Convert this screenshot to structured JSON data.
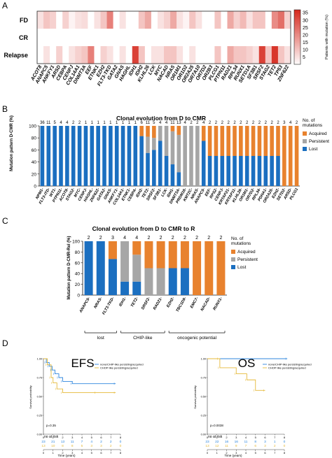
{
  "panels": {
    "a": "A",
    "b": "B",
    "c": "C",
    "d": "D"
  },
  "colors": {
    "acquired": "#E8822E",
    "persistent": "#A6A6A6",
    "lost": "#1B6FC0",
    "heat_low": "#FFFFFF",
    "heat_high": "#D62A1F",
    "km_blue": "#2E86DE",
    "km_orange": "#E5B93A"
  },
  "heatmap": {
    "rows": [
      "FD",
      "CR",
      "Relapse"
    ],
    "genes": [
      "ACOT8",
      "ANAPC5",
      "ANKFY1",
      "ARSD",
      "CEBPA",
      "CENPJ",
      "COL14A1",
      "DNMT3A",
      "EEF",
      "ETNK1",
      "EZH2",
      "FLT3-TKD",
      "GATA2",
      "GNAS",
      "HAGHL",
      "IDH1",
      "IDH2",
      "KLHL26",
      "LCK",
      "MYC",
      "NACAD",
      "NRAS",
      "OR1M1",
      "OR1D2",
      "OR2A25",
      "OR7A10",
      "OR7D2",
      "OR2B3",
      "PLCG1",
      "PTPN11",
      "RAD21",
      "RPL34",
      "RUNX1",
      "SETD1A",
      "SF3B1",
      "SRSF2",
      "STAG2",
      "TET2",
      "TP53",
      "ZNF622"
    ],
    "values": [
      [
        5,
        10,
        8,
        0,
        8,
        2,
        5,
        6,
        0,
        5,
        10,
        22,
        0,
        5,
        0,
        0,
        10,
        15,
        0,
        5,
        8,
        15,
        5,
        2,
        10,
        5,
        0,
        0,
        10,
        0,
        15,
        8,
        12,
        5,
        10,
        10,
        0,
        20,
        25,
        8
      ],
      [
        0,
        0,
        0,
        0,
        0,
        0,
        0,
        0,
        0,
        0,
        0,
        0,
        0,
        0,
        0,
        0,
        0,
        0,
        0,
        0,
        0,
        0,
        0,
        0,
        0,
        0,
        0,
        0,
        0,
        0,
        0,
        0,
        0,
        0,
        0,
        0,
        0,
        0,
        0,
        0
      ],
      [
        0,
        5,
        0,
        8,
        0,
        5,
        8,
        10,
        22,
        0,
        8,
        5,
        0,
        5,
        0,
        33,
        10,
        0,
        5,
        5,
        10,
        10,
        5,
        0,
        5,
        0,
        0,
        0,
        10,
        0,
        15,
        10,
        10,
        8,
        5,
        33,
        10,
        35,
        10,
        5
      ]
    ],
    "colorbar": {
      "label": "Patients with mutation (%)",
      "ticks": [
        5,
        10,
        15,
        20,
        25,
        30,
        35
      ],
      "max": 37
    }
  },
  "panelB": {
    "title": "Clonal evolution from D to CMR",
    "ylabel": "Mutation pattern  D-CMR (%)",
    "legend_title": "No. of\nmutations",
    "legend": [
      "Acquired",
      "Persistent",
      "Lost"
    ],
    "yticks": [
      0,
      20,
      40,
      60,
      80,
      100
    ],
    "bars": [
      {
        "label": "NPM1",
        "n": "36",
        "a": 0,
        "p": 0
      },
      {
        "label": "FLT3-ITD",
        "n": "11",
        "a": 0,
        "p": 0
      },
      {
        "label": "WT1",
        "n": "5",
        "a": 0,
        "p": 0
      },
      {
        "label": "PTPN11",
        "n": "4",
        "a": 0,
        "p": 0
      },
      {
        "label": "ACOT8",
        "n": "4",
        "a": 0,
        "p": 0
      },
      {
        "label": "STAG2",
        "n": "2",
        "a": 0,
        "p": 0
      },
      {
        "label": "MYC",
        "n": "2",
        "a": 0,
        "p": 0
      },
      {
        "label": "CENPJ",
        "n": "1",
        "a": 0,
        "p": 0
      },
      {
        "label": "HAGHL",
        "n": "1",
        "a": 0,
        "p": 0
      },
      {
        "label": "ZNF622",
        "n": "1",
        "a": 0,
        "p": 0
      },
      {
        "label": "GATA2",
        "n": "1",
        "a": 0,
        "p": 0
      },
      {
        "label": "GNAS",
        "n": "1",
        "a": 0,
        "p": 0
      },
      {
        "label": "ANKFY1",
        "n": "1",
        "a": 0,
        "p": 0
      },
      {
        "label": "COL14A1",
        "n": "1",
        "a": 0,
        "p": 0
      },
      {
        "label": "ETNK1",
        "n": "1",
        "a": 0,
        "p": 0
      },
      {
        "label": "CEBPA",
        "n": "1",
        "a": 0,
        "p": 0
      },
      {
        "label": "IDH2",
        "n": "6",
        "a": 17,
        "p": 0
      },
      {
        "label": "TET2",
        "n": "11",
        "a": 18,
        "p": 27
      },
      {
        "label": "SRSF2",
        "n": "5",
        "a": 20,
        "p": 20
      },
      {
        "label": "SF3B1",
        "n": "4",
        "a": 0,
        "p": 25
      },
      {
        "label": "LCK",
        "n": "4",
        "a": 0,
        "p": 50
      },
      {
        "label": "IDH1",
        "n": "11",
        "a": 9,
        "p": 55
      },
      {
        "label": "DNMT3A",
        "n": "13",
        "a": 15,
        "p": 62
      },
      {
        "label": "PRDM16",
        "n": "4",
        "a": 0,
        "p": 100
      },
      {
        "label": "KMT2C",
        "n": "2",
        "a": 0,
        "p": 100
      },
      {
        "label": "NRAS",
        "n": "2",
        "a": 0,
        "p": 100
      },
      {
        "label": "ANAPC5",
        "n": "4",
        "a": 25,
        "p": 0
      },
      {
        "label": "EEF",
        "n": "2",
        "a": 50,
        "p": 0
      },
      {
        "label": "RPS2",
        "n": "2",
        "a": 50,
        "p": 0
      },
      {
        "label": "CENPJ",
        "n": "2",
        "a": 50,
        "p": 0
      },
      {
        "label": "KRTAP21",
        "n": "2",
        "a": 50,
        "p": 0
      },
      {
        "label": "KRTAP11",
        "n": "2",
        "a": 50,
        "p": 0
      },
      {
        "label": "KLHL26",
        "n": "2",
        "a": 50,
        "p": 0
      },
      {
        "label": "OR1M1",
        "n": "2",
        "a": 50,
        "p": 0
      },
      {
        "label": "OR7D2",
        "n": "2",
        "a": 50,
        "p": 0
      },
      {
        "label": "RPL34",
        "n": "2",
        "a": 50,
        "p": 0
      },
      {
        "label": "PDHA1",
        "n": "2",
        "a": 50,
        "p": 0
      },
      {
        "label": "OR2A25",
        "n": "2",
        "a": 50,
        "p": 0
      },
      {
        "label": "EZH2",
        "n": "2",
        "a": 50,
        "p": 0
      },
      {
        "label": "SETD2",
        "n": "3",
        "a": 100,
        "p": 0
      },
      {
        "label": "ARSD",
        "n": "4",
        "a": 100,
        "p": 0
      },
      {
        "label": "PLCG1",
        "n": "2",
        "a": 100,
        "p": 0
      }
    ]
  },
  "panelC": {
    "title": "Clonal evolution from D to CMR to R",
    "ylabel": "Mutation pattern  D-CMR-Rel (%)",
    "legend_title": "No. of\nmutations",
    "legend": [
      "Acquired",
      "Persistent",
      "Lost"
    ],
    "yticks": [
      0,
      20,
      40,
      60,
      80,
      100
    ],
    "bars": [
      {
        "label": "ANAPC5",
        "n": "2",
        "a": 0,
        "p": 0
      },
      {
        "label": "NRAS",
        "n": "2",
        "a": 0,
        "p": 0
      },
      {
        "label": "FLT3-TKD",
        "n": "3",
        "a": 33,
        "p": 0
      },
      {
        "label": "IDH1",
        "n": "4",
        "a": 0,
        "p": 75
      },
      {
        "label": "TET2",
        "n": "4",
        "a": 25,
        "p": 50
      },
      {
        "label": "SRSF2",
        "n": "2",
        "a": 50,
        "p": 50
      },
      {
        "label": "RAD21",
        "n": "2",
        "a": 50,
        "p": 50
      },
      {
        "label": "EZH2",
        "n": "2",
        "a": 50,
        "p": 0
      },
      {
        "label": "TBC1D9",
        "n": "2",
        "a": 50,
        "p": 0
      },
      {
        "label": "EMC7",
        "n": "2",
        "a": 100,
        "p": 0
      },
      {
        "label": "NACAD",
        "n": "2",
        "a": 100,
        "p": 0
      },
      {
        "label": "RUNX1",
        "n": "2",
        "a": 100,
        "p": 0
      }
    ],
    "groups": [
      {
        "label": "lost",
        "from": 0,
        "to": 2
      },
      {
        "label": "CHIP-like",
        "from": 3,
        "to": 6
      },
      {
        "label": "oncogenic potential",
        "from": 7,
        "to": 11
      }
    ]
  },
  "panelD": {
    "efs": {
      "title": "EFS",
      "ylabel": "Survival probability",
      "xlabel": "Time (years)",
      "yticks": [
        "0.00",
        "0.25",
        "0.50",
        "0.75",
        "1.00"
      ],
      "xticks": [
        "0",
        "1",
        "2",
        "3",
        "4",
        "5",
        "6",
        "7",
        "8"
      ],
      "legend": [
        "none/CHIP-like persisting/acquired",
        "CHOP-like persisting/acquired"
      ],
      "pvalue": "p=0.35",
      "at_risk_label": "no at risk",
      "risk_blue": [
        "23",
        "21",
        "13",
        "11",
        "7",
        "4",
        "2",
        "2",
        "0"
      ],
      "risk_orange": [
        "13",
        "10",
        "8",
        "8",
        "5",
        "3",
        "3",
        "2",
        "0"
      ],
      "blue_curve": [
        [
          0,
          1
        ],
        [
          0.3,
          0.95
        ],
        [
          0.6,
          0.9
        ],
        [
          0.9,
          0.85
        ],
        [
          1.2,
          0.8
        ],
        [
          1.6,
          0.75
        ],
        [
          2.0,
          0.7
        ],
        [
          3.0,
          0.67
        ],
        [
          7.5,
          0.67
        ]
      ],
      "orange_curve": [
        [
          0,
          1
        ],
        [
          0.4,
          0.92
        ],
        [
          0.8,
          0.75
        ],
        [
          1.0,
          0.68
        ],
        [
          1.4,
          0.6
        ],
        [
          2.0,
          0.55
        ],
        [
          5.5,
          0.55
        ],
        [
          7.5,
          0.55
        ]
      ]
    },
    "os": {
      "title": "OS",
      "ylabel": "Survival probability",
      "xlabel": "Time (years)",
      "yticks": [
        "0.00",
        "0.25",
        "0.50",
        "0.75",
        "1.00"
      ],
      "xticks": [
        "0",
        "1",
        "2",
        "3",
        "4",
        "5",
        "6",
        "7",
        "8"
      ],
      "legend": [
        "none/CHIP-like persisting/acquired",
        "CHOP-like persisting/acquired"
      ],
      "pvalue": "p=0.0038",
      "at_risk_label": "no at risk",
      "risk_blue": [
        "23",
        "22",
        "16",
        "16",
        "11",
        "8",
        "3",
        "1",
        "0"
      ],
      "risk_orange": [
        "13",
        "12",
        "11",
        "9",
        "7",
        "6",
        "3",
        "2",
        "0"
      ],
      "blue_curve": [
        [
          0,
          1
        ],
        [
          8.3,
          1
        ]
      ],
      "orange_curve": [
        [
          0,
          1
        ],
        [
          1.2,
          1
        ],
        [
          1.3,
          0.88
        ],
        [
          3.0,
          0.8
        ],
        [
          4.1,
          0.72
        ],
        [
          5.0,
          0.58
        ],
        [
          6.0,
          0.58
        ]
      ]
    }
  }
}
